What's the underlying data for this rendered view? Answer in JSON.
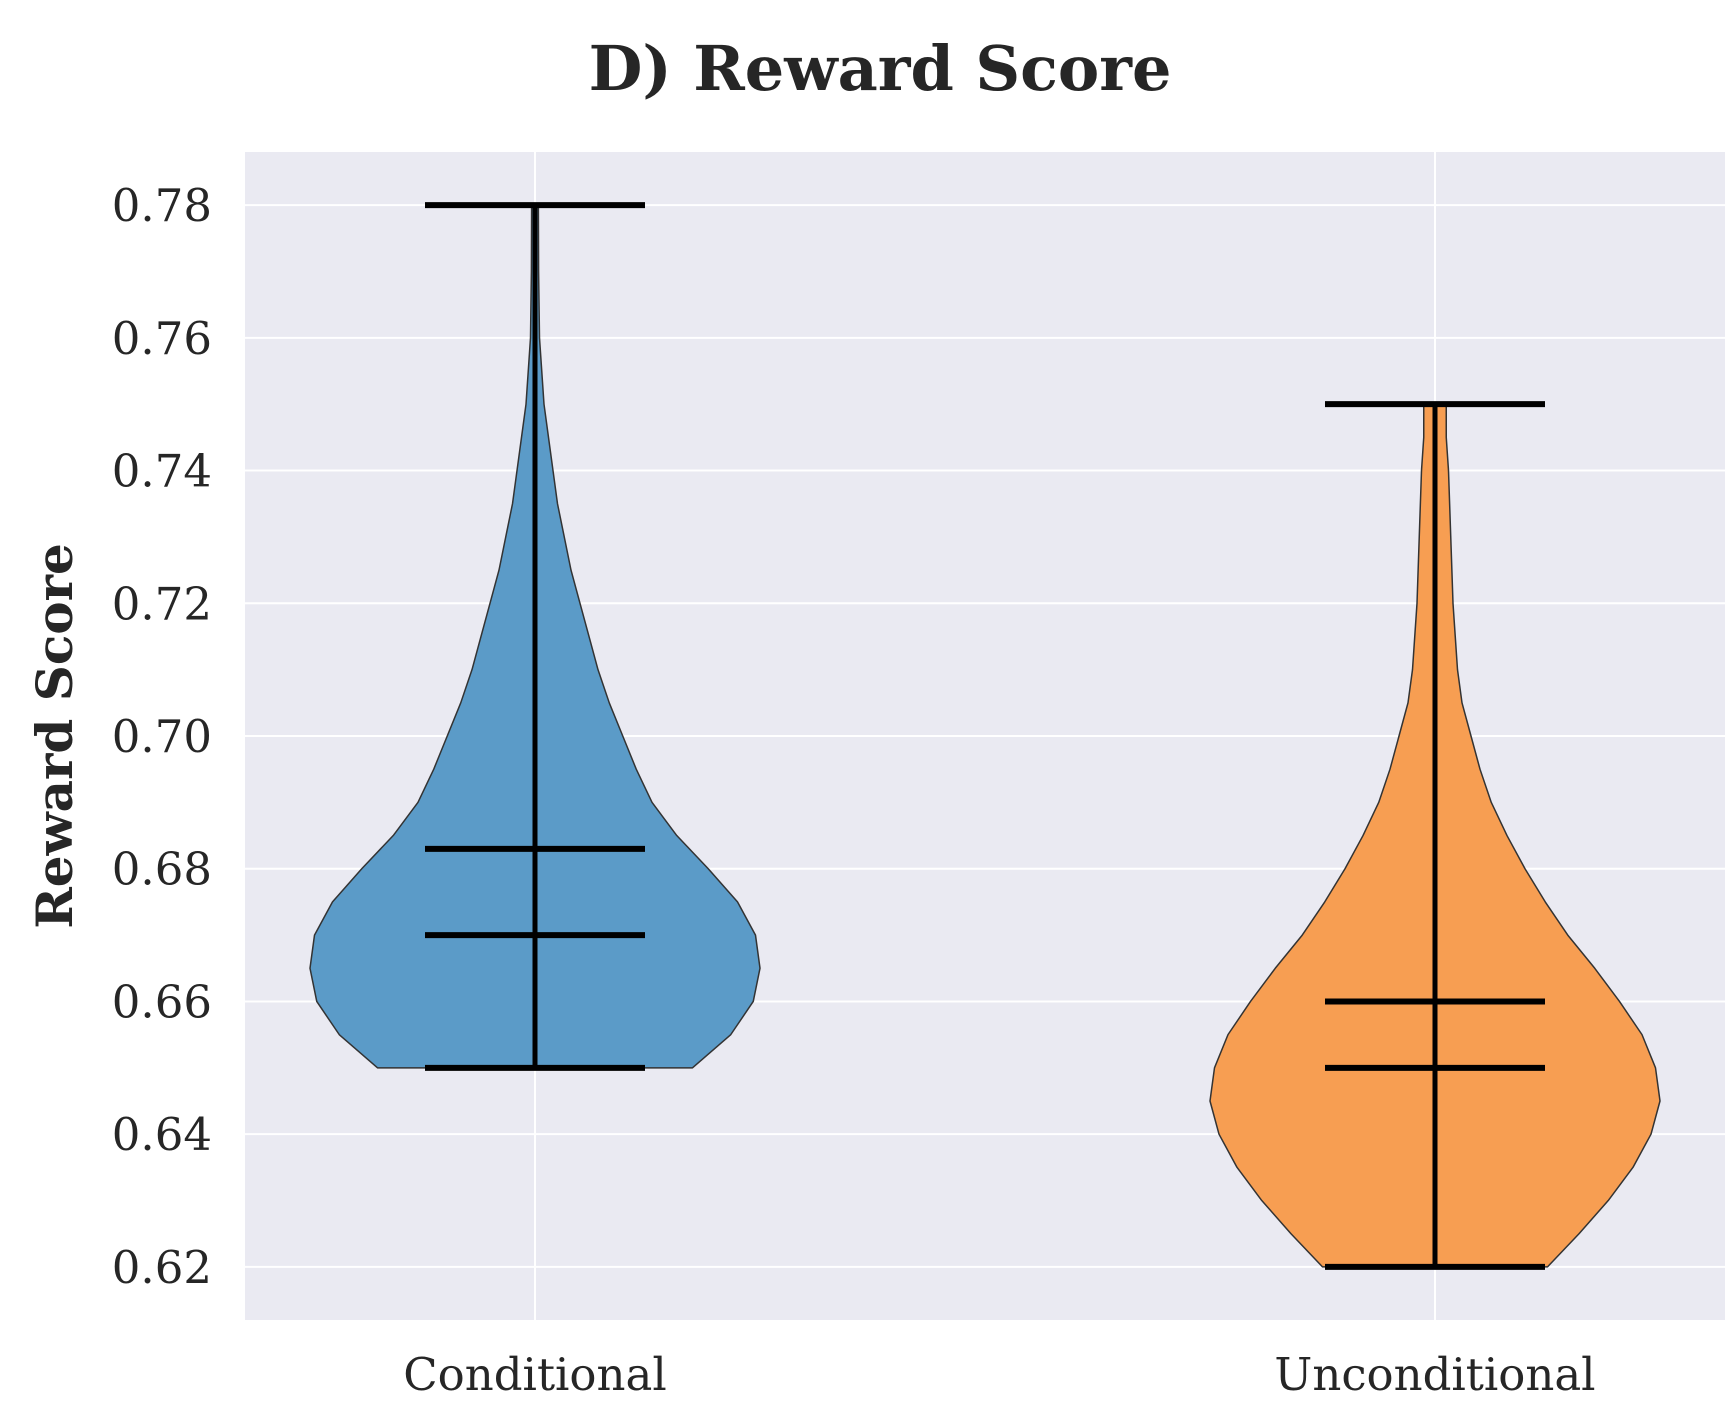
{
  "chart_data": {
    "type": "violin",
    "title": "D) Reward Score",
    "xlabel": "",
    "ylabel": "Reward Score",
    "ylim": [
      0.612,
      0.788
    ],
    "yticks": [
      "0.62",
      "0.64",
      "0.66",
      "0.68",
      "0.70",
      "0.72",
      "0.74",
      "0.76",
      "0.78"
    ],
    "grid": true,
    "categories": [
      "Conditional",
      "Unconditional"
    ],
    "series": [
      {
        "category": "Conditional",
        "color": "#5b9bc8",
        "min": 0.65,
        "max": 0.78,
        "mean": 0.683,
        "median": 0.67,
        "density": [
          [
            0.65,
            0.7
          ],
          [
            0.655,
            0.87
          ],
          [
            0.66,
            0.97
          ],
          [
            0.665,
            1.0
          ],
          [
            0.67,
            0.98
          ],
          [
            0.675,
            0.9
          ],
          [
            0.68,
            0.77
          ],
          [
            0.685,
            0.63
          ],
          [
            0.69,
            0.52
          ],
          [
            0.695,
            0.45
          ],
          [
            0.7,
            0.39
          ],
          [
            0.705,
            0.33
          ],
          [
            0.71,
            0.28
          ],
          [
            0.715,
            0.24
          ],
          [
            0.72,
            0.2
          ],
          [
            0.725,
            0.16
          ],
          [
            0.73,
            0.13
          ],
          [
            0.735,
            0.1
          ],
          [
            0.74,
            0.08
          ],
          [
            0.745,
            0.06
          ],
          [
            0.75,
            0.04
          ],
          [
            0.755,
            0.03
          ],
          [
            0.76,
            0.02
          ],
          [
            0.77,
            0.016
          ],
          [
            0.78,
            0.015
          ]
        ]
      },
      {
        "category": "Unconditional",
        "color": "#f79e52",
        "min": 0.62,
        "max": 0.75,
        "mean": 0.66,
        "median": 0.65,
        "density": [
          [
            0.62,
            0.5
          ],
          [
            0.625,
            0.64
          ],
          [
            0.63,
            0.77
          ],
          [
            0.635,
            0.88
          ],
          [
            0.64,
            0.96
          ],
          [
            0.645,
            1.0
          ],
          [
            0.65,
            0.98
          ],
          [
            0.655,
            0.92
          ],
          [
            0.66,
            0.82
          ],
          [
            0.665,
            0.71
          ],
          [
            0.67,
            0.59
          ],
          [
            0.675,
            0.49
          ],
          [
            0.68,
            0.4
          ],
          [
            0.685,
            0.32
          ],
          [
            0.69,
            0.25
          ],
          [
            0.695,
            0.2
          ],
          [
            0.7,
            0.16
          ],
          [
            0.705,
            0.12
          ],
          [
            0.71,
            0.1
          ],
          [
            0.715,
            0.09
          ],
          [
            0.72,
            0.08
          ],
          [
            0.73,
            0.07
          ],
          [
            0.74,
            0.06
          ],
          [
            0.745,
            0.05
          ],
          [
            0.75,
            0.05
          ]
        ]
      }
    ]
  }
}
